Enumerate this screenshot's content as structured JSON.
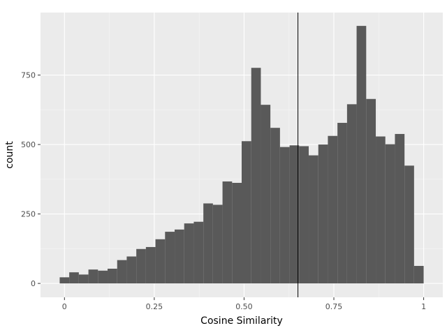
{
  "chart_data": {
    "type": "histogram",
    "xlabel": "Cosine Similarity",
    "ylabel": "count",
    "bin_width": 0.02667,
    "bins": [
      {
        "x0": -0.0133,
        "x1": 0.0133,
        "count": 22
      },
      {
        "x0": 0.0133,
        "x1": 0.04,
        "count": 40
      },
      {
        "x0": 0.04,
        "x1": 0.0667,
        "count": 32
      },
      {
        "x0": 0.0667,
        "x1": 0.0933,
        "count": 50
      },
      {
        "x0": 0.0933,
        "x1": 0.12,
        "count": 46
      },
      {
        "x0": 0.12,
        "x1": 0.1467,
        "count": 53
      },
      {
        "x0": 0.1467,
        "x1": 0.1733,
        "count": 84
      },
      {
        "x0": 0.1733,
        "x1": 0.2,
        "count": 97
      },
      {
        "x0": 0.2,
        "x1": 0.2267,
        "count": 124
      },
      {
        "x0": 0.2267,
        "x1": 0.2533,
        "count": 131
      },
      {
        "x0": 0.2533,
        "x1": 0.28,
        "count": 159
      },
      {
        "x0": 0.28,
        "x1": 0.3067,
        "count": 186
      },
      {
        "x0": 0.3067,
        "x1": 0.3333,
        "count": 194
      },
      {
        "x0": 0.3333,
        "x1": 0.36,
        "count": 216
      },
      {
        "x0": 0.36,
        "x1": 0.3867,
        "count": 222
      },
      {
        "x0": 0.3867,
        "x1": 0.4133,
        "count": 288
      },
      {
        "x0": 0.4133,
        "x1": 0.44,
        "count": 283
      },
      {
        "x0": 0.44,
        "x1": 0.4667,
        "count": 367
      },
      {
        "x0": 0.4667,
        "x1": 0.4933,
        "count": 362
      },
      {
        "x0": 0.4933,
        "x1": 0.52,
        "count": 512
      },
      {
        "x0": 0.52,
        "x1": 0.5467,
        "count": 776
      },
      {
        "x0": 0.5467,
        "x1": 0.5733,
        "count": 643
      },
      {
        "x0": 0.5733,
        "x1": 0.6,
        "count": 560
      },
      {
        "x0": 0.6,
        "x1": 0.6267,
        "count": 491
      },
      {
        "x0": 0.6267,
        "x1": 0.6533,
        "count": 497
      },
      {
        "x0": 0.6533,
        "x1": 0.68,
        "count": 494
      },
      {
        "x0": 0.68,
        "x1": 0.7067,
        "count": 461
      },
      {
        "x0": 0.7067,
        "x1": 0.7333,
        "count": 500
      },
      {
        "x0": 0.7333,
        "x1": 0.76,
        "count": 531
      },
      {
        "x0": 0.76,
        "x1": 0.7867,
        "count": 578
      },
      {
        "x0": 0.7867,
        "x1": 0.8133,
        "count": 645
      },
      {
        "x0": 0.8133,
        "x1": 0.84,
        "count": 927
      },
      {
        "x0": 0.84,
        "x1": 0.8667,
        "count": 664
      },
      {
        "x0": 0.8667,
        "x1": 0.8933,
        "count": 529
      },
      {
        "x0": 0.8933,
        "x1": 0.92,
        "count": 501
      },
      {
        "x0": 0.92,
        "x1": 0.9467,
        "count": 538
      },
      {
        "x0": 0.9467,
        "x1": 0.9733,
        "count": 424
      },
      {
        "x0": 0.9733,
        "x1": 1.0,
        "count": 63
      }
    ],
    "xlim": [
      -0.0667,
      1.0533
    ],
    "ylim": [
      -50,
      975
    ],
    "x_ticks": [
      {
        "value": 0,
        "label": "0"
      },
      {
        "value": 0.25,
        "label": "0.25"
      },
      {
        "value": 0.5,
        "label": "0.50"
      },
      {
        "value": 0.75,
        "label": "0.75"
      },
      {
        "value": 1,
        "label": "1"
      }
    ],
    "y_ticks": [
      {
        "value": 0,
        "label": "0"
      },
      {
        "value": 250,
        "label": "250"
      },
      {
        "value": 500,
        "label": "500"
      },
      {
        "value": 750,
        "label": "750"
      }
    ],
    "vline": {
      "x": 0.65
    },
    "grid": true,
    "colors": {
      "panel_background": "#ebebeb",
      "grid_major": "#ffffff",
      "grid_minor": "#f5f5f5",
      "bar_fill": "#595959",
      "vline": "#000000",
      "tick_text": "#4d4d4d",
      "tick_mark": "#333333"
    }
  }
}
